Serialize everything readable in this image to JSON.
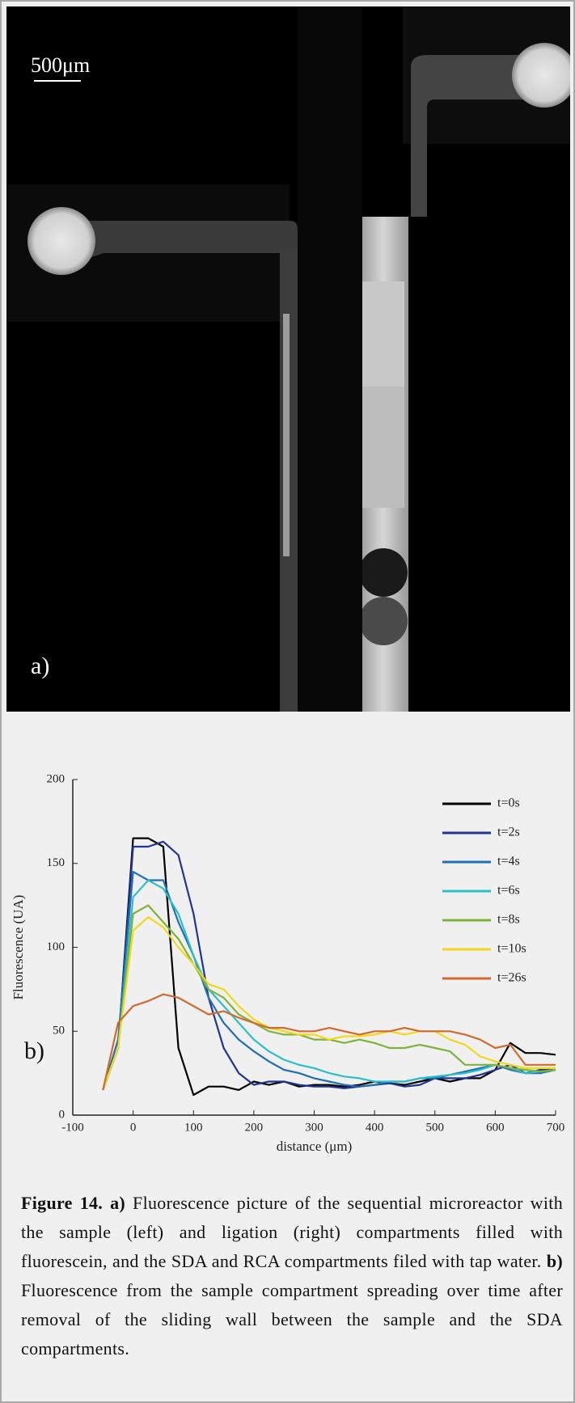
{
  "image": {
    "scale_label": "500μm",
    "panel_label": "a)"
  },
  "chart_data": {
    "type": "line",
    "panel_label": "b)",
    "xlabel": "distance (μm)",
    "ylabel": "Fluorescence (UA)",
    "x": [
      -50,
      -25,
      0,
      25,
      50,
      75,
      100,
      125,
      150,
      175,
      200,
      225,
      250,
      275,
      300,
      325,
      350,
      375,
      400,
      425,
      450,
      475,
      500,
      525,
      550,
      575,
      600,
      625,
      650,
      675,
      700
    ],
    "xlim": [
      -100,
      700
    ],
    "ylim": [
      0,
      200
    ],
    "xticks": [
      -100,
      0,
      100,
      200,
      300,
      400,
      500,
      600,
      700
    ],
    "yticks": [
      0,
      50,
      100,
      150,
      200
    ],
    "legend": "upper right",
    "series": [
      {
        "name": "t=0s",
        "color": "#000000",
        "values": [
          15,
          40,
          165,
          165,
          160,
          40,
          12,
          17,
          17,
          15,
          20,
          18,
          20,
          17,
          18,
          18,
          17,
          18,
          20,
          19,
          18,
          20,
          22,
          20,
          22,
          22,
          27,
          43,
          37,
          37,
          36
        ]
      },
      {
        "name": "t=2s",
        "color": "#1f3591",
        "values": [
          15,
          40,
          160,
          160,
          163,
          155,
          120,
          70,
          40,
          25,
          18,
          20,
          20,
          18,
          17,
          17,
          16,
          17,
          18,
          19,
          17,
          18,
          22,
          22,
          22,
          24,
          27,
          30,
          25,
          27,
          28
        ]
      },
      {
        "name": "t=4s",
        "color": "#1f6fb5",
        "values": [
          15,
          45,
          145,
          140,
          140,
          115,
          95,
          70,
          55,
          45,
          38,
          32,
          27,
          25,
          22,
          20,
          18,
          17,
          18,
          20,
          20,
          22,
          22,
          24,
          26,
          28,
          30,
          27,
          25,
          25,
          27
        ]
      },
      {
        "name": "t=6s",
        "color": "#2bbfc9",
        "values": [
          15,
          40,
          130,
          140,
          135,
          120,
          95,
          75,
          65,
          55,
          45,
          38,
          33,
          30,
          28,
          25,
          23,
          22,
          20,
          20,
          20,
          22,
          23,
          24,
          25,
          27,
          30,
          28,
          25,
          26,
          27
        ]
      },
      {
        "name": "t=8s",
        "color": "#7fb23a",
        "values": [
          15,
          40,
          120,
          125,
          115,
          105,
          90,
          75,
          70,
          60,
          55,
          50,
          48,
          48,
          45,
          45,
          43,
          45,
          43,
          40,
          40,
          42,
          40,
          38,
          30,
          30,
          30,
          28,
          27,
          26,
          27
        ]
      },
      {
        "name": "t=10s",
        "color": "#f2d81c",
        "values": [
          15,
          40,
          110,
          118,
          112,
          100,
          90,
          78,
          75,
          65,
          57,
          52,
          50,
          48,
          48,
          45,
          47,
          47,
          48,
          50,
          48,
          50,
          50,
          45,
          42,
          35,
          32,
          30,
          28,
          28,
          28
        ]
      },
      {
        "name": "t=26s",
        "color": "#d2692e",
        "values": [
          15,
          55,
          65,
          68,
          72,
          70,
          65,
          60,
          62,
          58,
          55,
          52,
          52,
          50,
          50,
          52,
          50,
          48,
          50,
          50,
          52,
          50,
          50,
          50,
          48,
          45,
          40,
          42,
          30,
          30,
          30
        ]
      }
    ]
  },
  "caption": {
    "label": "Figure 14.",
    "part_a_label": "a)",
    "part_a": "Fluorescence picture of the sequential microreactor with the sample (left) and ligation (right) compartments filled with fluorescein, and the SDA and RCA compartments filed with tap water.",
    "part_b_label": "b)",
    "part_b": "Fluorescence from the sample compartment spreading over time after removal of the sliding wall between the sample and the SDA compartments."
  }
}
